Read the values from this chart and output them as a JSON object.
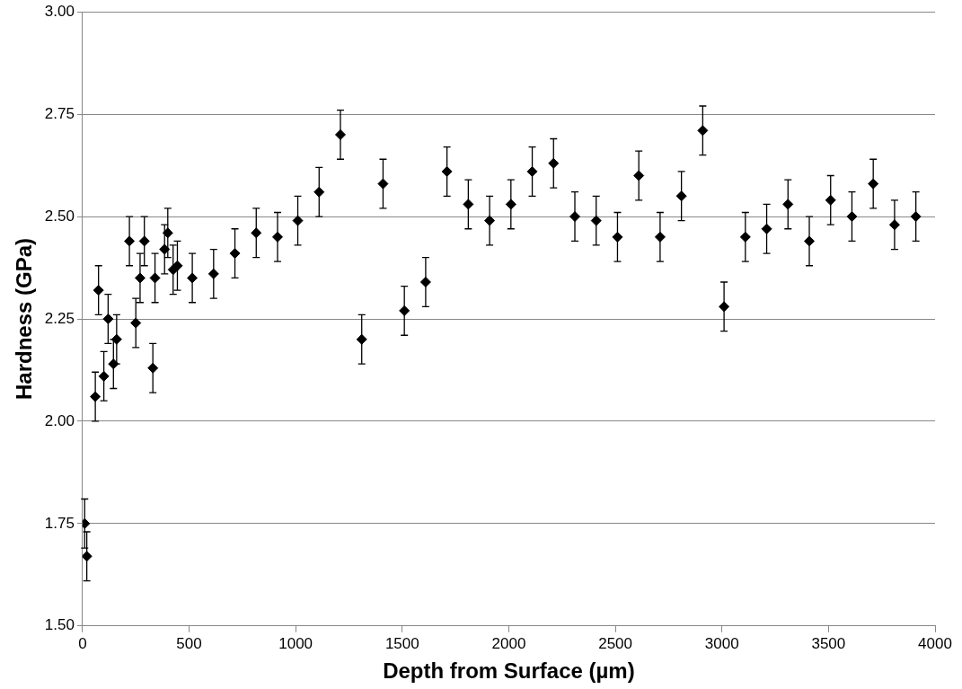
{
  "chart_data": {
    "type": "scatter",
    "xlabel": "Depth from Surface (µm)",
    "ylabel": "Hardness (GPa)",
    "xlim": [
      0,
      4000
    ],
    "xticks": [
      0,
      500,
      1000,
      1500,
      2000,
      2500,
      3000,
      3500,
      4000
    ],
    "ylim": [
      1.5,
      3
    ],
    "yticks": [
      {
        "value": 1.5,
        "label": "1.50"
      },
      {
        "value": 1.75,
        "label": "1.75"
      },
      {
        "value": 2,
        "label": "2.00"
      },
      {
        "value": 2.25,
        "label": "2.25"
      },
      {
        "value": 2.5,
        "label": "2.50"
      },
      {
        "value": 2.75,
        "label": "2.75"
      },
      {
        "value": 3,
        "label": "3.00"
      }
    ],
    "grid": "y",
    "legend": false,
    "marker": "diamond",
    "series": [
      {
        "color": "#000000",
        "x": [
          10,
          20,
          60,
          75,
          100,
          120,
          145,
          160,
          220,
          250,
          270,
          290,
          330,
          340,
          385,
          400,
          425,
          445,
          515,
          615,
          715,
          815,
          915,
          1010,
          1110,
          1210,
          1310,
          1410,
          1510,
          1610,
          1710,
          1810,
          1910,
          2010,
          2110,
          2210,
          2310,
          2410,
          2510,
          2610,
          2710,
          2810,
          2910,
          3010,
          3110,
          3210,
          3310,
          3410,
          3510,
          3610,
          3710,
          3810,
          3910
        ],
        "values": [
          1.75,
          1.67,
          2.06,
          2.32,
          2.11,
          2.25,
          2.14,
          2.2,
          2.44,
          2.24,
          2.35,
          2.44,
          2.13,
          2.35,
          2.42,
          2.46,
          2.37,
          2.38,
          2.35,
          2.36,
          2.41,
          2.46,
          2.45,
          2.49,
          2.56,
          2.7,
          2.2,
          2.58,
          2.27,
          2.34,
          2.61,
          2.53,
          2.49,
          2.53,
          2.61,
          2.63,
          2.5,
          2.49,
          2.45,
          2.6,
          2.45,
          2.55,
          2.71,
          2.28,
          2.45,
          2.47,
          2.53,
          2.44,
          2.54,
          2.5,
          2.58,
          2.48,
          2.5
        ],
        "errors": [
          0.06,
          0.06,
          0.06,
          0.06,
          0.06,
          0.06,
          0.06,
          0.06,
          0.06,
          0.06,
          0.06,
          0.06,
          0.06,
          0.06,
          0.06,
          0.06,
          0.06,
          0.06,
          0.06,
          0.06,
          0.06,
          0.06,
          0.06,
          0.06,
          0.06,
          0.06,
          0.06,
          0.06,
          0.06,
          0.06,
          0.06,
          0.06,
          0.06,
          0.06,
          0.06,
          0.06,
          0.06,
          0.06,
          0.06,
          0.06,
          0.06,
          0.06,
          0.06,
          0.06,
          0.06,
          0.06,
          0.06,
          0.06,
          0.06,
          0.06,
          0.06,
          0.06,
          0.06
        ]
      }
    ]
  }
}
